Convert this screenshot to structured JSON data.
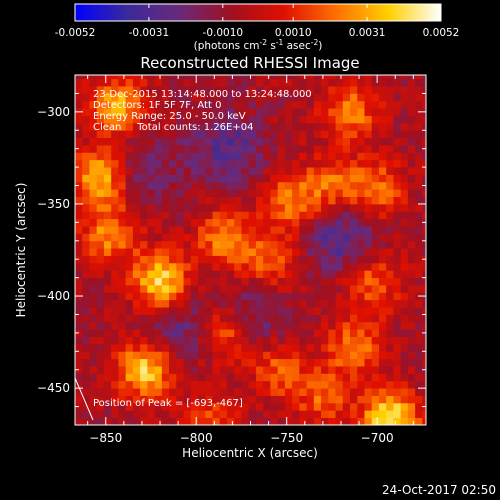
{
  "chart_data": {
    "type": "heatmap",
    "title": "Reconstructed RHESSI Image",
    "xlabel": "Heliocentric X (arcsec)",
    "ylabel": "Heliocentric Y (arcsec)",
    "xlim": [
      -867,
      -673
    ],
    "ylim": [
      -470,
      -280
    ],
    "x_ticks": [
      -850,
      -800,
      -750,
      -700
    ],
    "y_ticks": [
      -300,
      -350,
      -400,
      -450
    ],
    "colorbar": {
      "min": -0.0052,
      "max": 0.0052,
      "ticks": [
        "-0.0052",
        "-0.0031",
        "-0.0010",
        "0.0010",
        "0.0031",
        "0.0052"
      ],
      "label_parts": [
        "(photons cm",
        "-2",
        " s",
        "-1",
        " asec",
        "-2",
        ")"
      ],
      "colors": [
        "#0000ff",
        "#3a2a9a",
        "#6a2a7a",
        "#a01020",
        "#e01000",
        "#ff7000",
        "#ffd000",
        "#ffffff"
      ]
    },
    "annotations": [
      "23-Dec-2015 13:14:48.000 to 13:24:48.000",
      "Detectors: 1F 5F 7F, Att 0",
      "Energy Range: 25.0 - 50.0 keV",
      "Clean     Total counts: 1.26E+04"
    ],
    "peak_label": "Position of Peak = [-693,-467]",
    "peak": {
      "x": -693,
      "y": -467
    },
    "hot_regions": [
      {
        "x": -843,
        "y": -297,
        "peak": 0.004
      },
      {
        "x": -853,
        "y": -335,
        "peak": 0.004
      },
      {
        "x": -848,
        "y": -366,
        "peak": 0.0032
      },
      {
        "x": -820,
        "y": -392,
        "peak": 0.0048
      },
      {
        "x": -828,
        "y": -440,
        "peak": 0.0046
      },
      {
        "x": -785,
        "y": -368,
        "peak": 0.003
      },
      {
        "x": -783,
        "y": -420,
        "peak": 0.0032
      },
      {
        "x": -760,
        "y": -380,
        "peak": 0.0026
      },
      {
        "x": -755,
        "y": -440,
        "peak": 0.0024
      },
      {
        "x": -748,
        "y": -348,
        "peak": 0.003
      },
      {
        "x": -725,
        "y": -340,
        "peak": 0.0026
      },
      {
        "x": -715,
        "y": -300,
        "peak": 0.003
      },
      {
        "x": -700,
        "y": -342,
        "peak": 0.0028
      },
      {
        "x": -702,
        "y": -392,
        "peak": 0.0026
      },
      {
        "x": -712,
        "y": -428,
        "peak": 0.003
      },
      {
        "x": -693,
        "y": -467,
        "peak": 0.0052
      },
      {
        "x": -793,
        "y": -470,
        "peak": 0.0024
      },
      {
        "x": -730,
        "y": -455,
        "peak": 0.0024
      }
    ],
    "cold_regions": [
      {
        "x": -783,
        "y": -320,
        "peak": -0.0022
      },
      {
        "x": -720,
        "y": -368,
        "peak": -0.0024
      },
      {
        "x": -810,
        "y": -418,
        "peak": -0.0018
      },
      {
        "x": -770,
        "y": -412,
        "peak": -0.002
      },
      {
        "x": -830,
        "y": -330,
        "peak": -0.0016
      }
    ]
  },
  "footer_timestamp": "24-Oct-2017 02:50"
}
